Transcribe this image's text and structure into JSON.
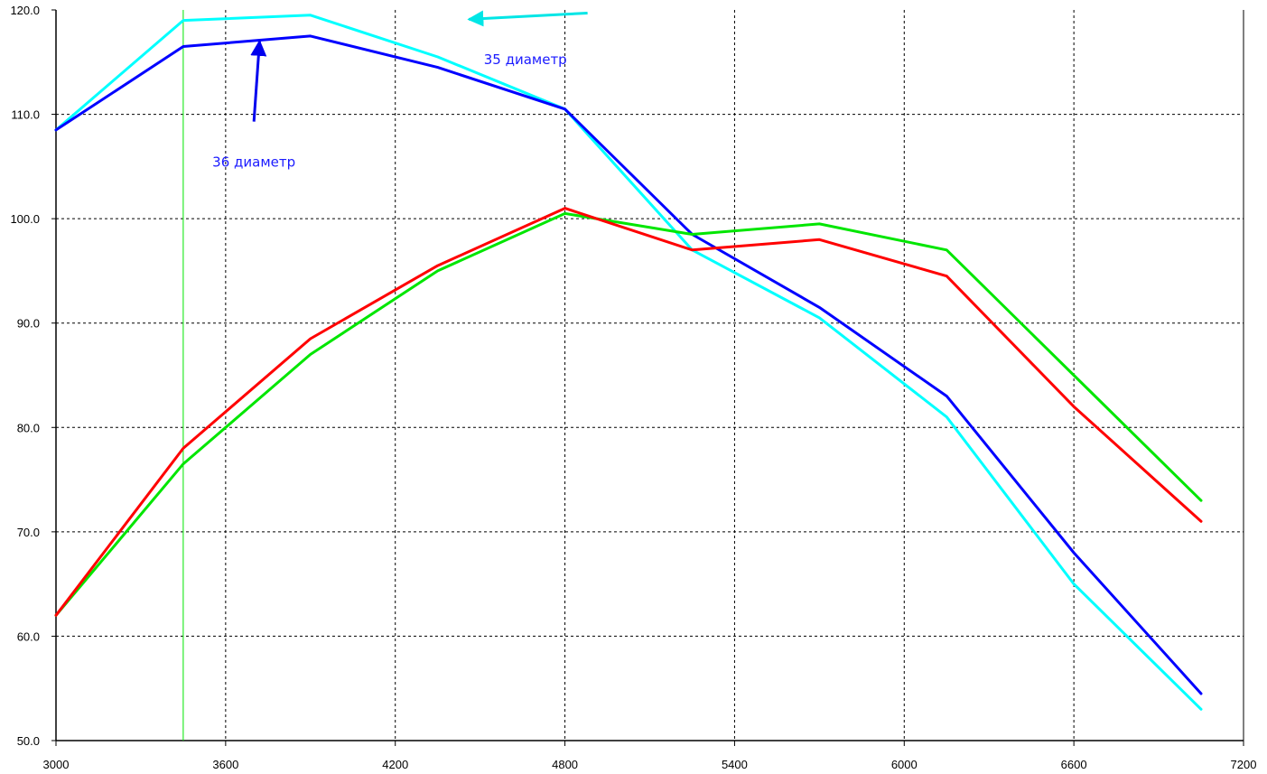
{
  "chart_data": {
    "type": "line",
    "title": "",
    "xlabel": "",
    "ylabel": "",
    "xlim": [
      3000,
      7200
    ],
    "ylim": [
      50,
      120
    ],
    "grid": true,
    "xticks": [
      3000,
      3600,
      4200,
      4800,
      5400,
      6000,
      6600,
      7200
    ],
    "yticks": [
      50,
      60,
      70,
      80,
      90,
      100,
      110,
      120
    ],
    "xtick_labels": [
      "3000",
      "3600",
      "4200",
      "4800",
      "5400",
      "6000",
      "6600",
      "7200"
    ],
    "ytick_labels": [
      "50.0",
      "60.0",
      "70.0",
      "80.0",
      "90.0",
      "100.0",
      "110.0",
      "120.0"
    ],
    "series": [
      {
        "color": "#00ffff",
        "x": [
          3000,
          3450,
          3900,
          4350,
          4800,
          5250,
          5700,
          6150,
          6600,
          7050
        ],
        "y": [
          108.5,
          119.0,
          119.5,
          115.5,
          110.5,
          97.0,
          90.5,
          81.0,
          65.0,
          53.0
        ]
      },
      {
        "color": "#0000ff",
        "x": [
          3000,
          3450,
          3900,
          4350,
          4800,
          5250,
          5700,
          6150,
          6600,
          7050
        ],
        "y": [
          108.5,
          116.5,
          117.5,
          114.5,
          110.5,
          98.5,
          91.5,
          83.0,
          68.0,
          54.5
        ]
      },
      {
        "color": "#00e600",
        "x": [
          3000,
          3450,
          3900,
          4350,
          4800,
          5250,
          5700,
          6150,
          6600,
          7050
        ],
        "y": [
          62.0,
          76.5,
          87.0,
          95.0,
          100.5,
          98.5,
          99.5,
          97.0,
          85.0,
          73.0
        ]
      },
      {
        "color": "#ff0000",
        "x": [
          3000,
          3450,
          3900,
          4350,
          4800,
          5250,
          5700,
          6150,
          6600,
          7050
        ],
        "y": [
          62.0,
          78.0,
          88.5,
          95.5,
          101.0,
          97.0,
          98.0,
          94.5,
          82.0,
          71.0
        ]
      }
    ],
    "cursor": {
      "x": 3450,
      "color": "#00e600"
    },
    "annotations": [
      {
        "text": "35 диаметр",
        "color": "#1a1aff",
        "x": 4660,
        "y": 114.8,
        "arrow_color": "#00e6e6",
        "arrow_from": [
          4880,
          119.7
        ],
        "arrow_to": [
          4460,
          119.1
        ]
      },
      {
        "text": "36 диаметр",
        "color": "#1a1aff",
        "x": 3700,
        "y": 105.0,
        "arrow_color": "#0000ee",
        "arrow_from": [
          3700,
          109.3
        ],
        "arrow_to": [
          3720,
          117.0
        ]
      }
    ]
  }
}
